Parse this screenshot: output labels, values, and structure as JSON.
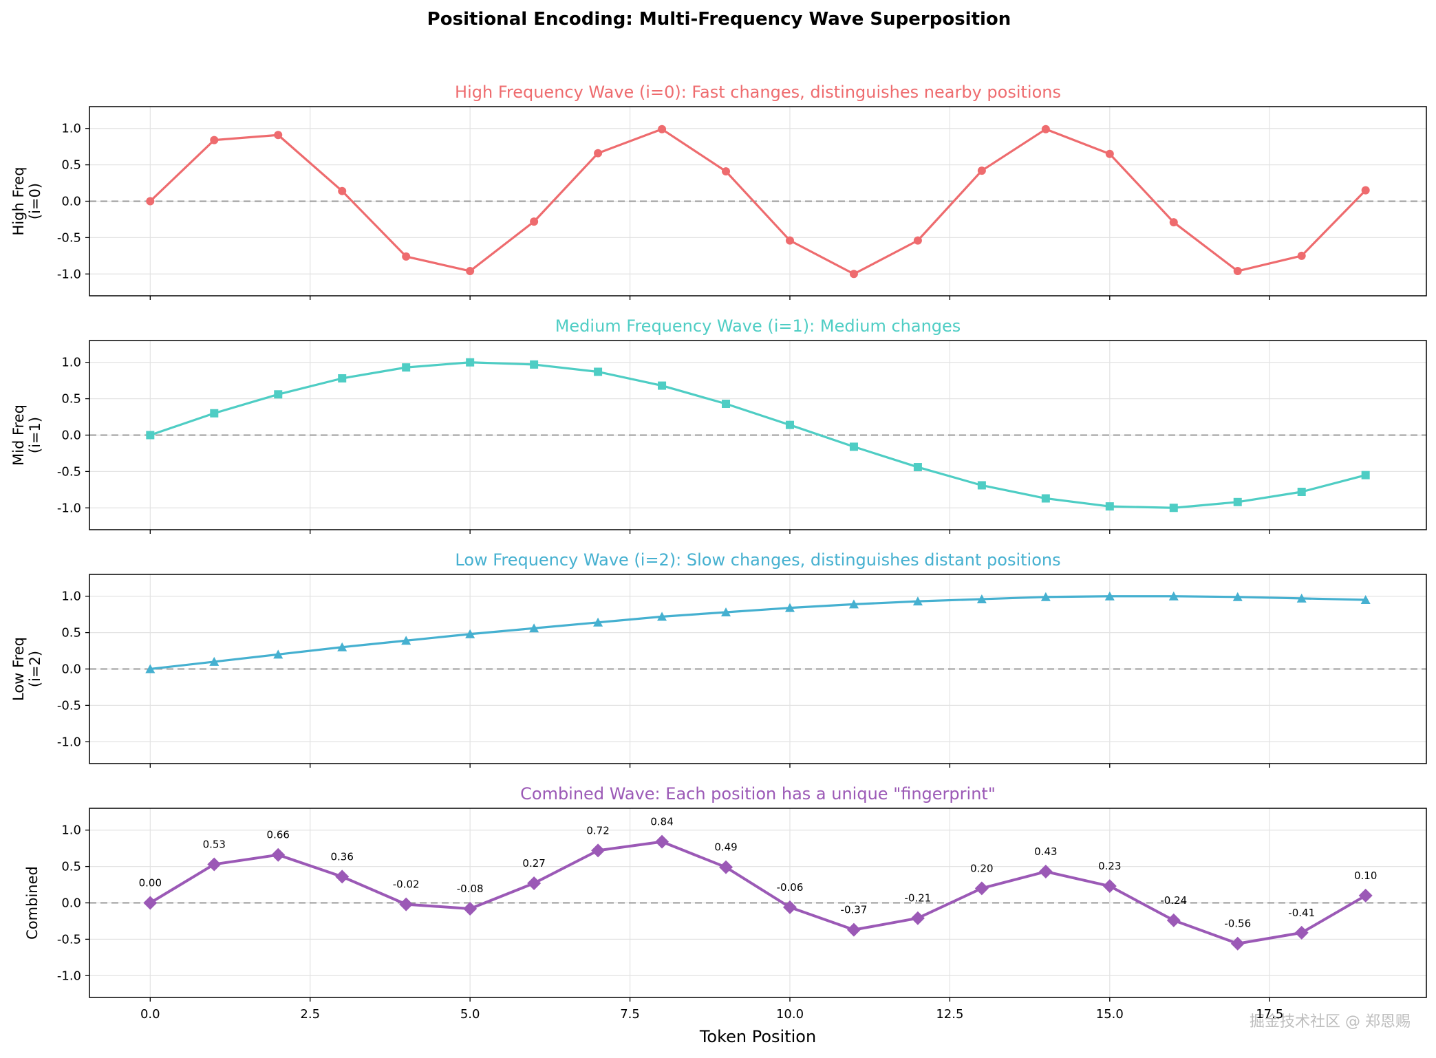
{
  "title": "Positional Encoding: Multi-Frequency Wave Superposition",
  "watermark": "掘金技术社区 @ 郑恩赐",
  "chart_data": {
    "type": "line",
    "x": [
      0,
      1,
      2,
      3,
      4,
      5,
      6,
      7,
      8,
      9,
      10,
      11,
      12,
      13,
      14,
      15,
      16,
      17,
      18,
      19
    ],
    "xlabel": "Token Position",
    "xticks": [
      "0.0",
      "2.5",
      "5.0",
      "7.5",
      "10.0",
      "12.5",
      "15.0",
      "17.5"
    ],
    "xlim": [
      -0.95,
      19.95
    ],
    "ylim": [
      -1.3,
      1.3
    ],
    "yticks": [
      "1.0",
      "0.5",
      "0.0",
      "-0.5",
      "-1.0"
    ],
    "grid": true,
    "reference_line": {
      "y": 0,
      "style": "dashed",
      "color": "#999999"
    },
    "panels": [
      {
        "title": "High Frequency Wave (i=0): Fast changes, distinguishes nearby positions",
        "ylabel": [
          "High Freq",
          "(i=0)"
        ],
        "color": "#ee6b6e",
        "marker": "circle",
        "values": [
          0.0,
          0.84,
          0.91,
          0.14,
          -0.76,
          -0.96,
          -0.28,
          0.66,
          0.99,
          0.41,
          -0.54,
          -1.0,
          -0.54,
          0.42,
          0.99,
          0.65,
          -0.29,
          -0.96,
          -0.75,
          0.15
        ]
      },
      {
        "title": "Medium Frequency Wave (i=1): Medium changes",
        "ylabel": [
          "Mid Freq",
          "(i=1)"
        ],
        "color": "#4ecdc4",
        "marker": "square",
        "values": [
          0.0,
          0.3,
          0.56,
          0.78,
          0.93,
          1.0,
          0.97,
          0.87,
          0.68,
          0.43,
          0.14,
          -0.16,
          -0.44,
          -0.69,
          -0.87,
          -0.98,
          -1.0,
          -0.92,
          -0.78,
          -0.55
        ]
      },
      {
        "title": "Low Frequency Wave (i=2): Slow changes, distinguishes distant positions",
        "ylabel": [
          "Low Freq",
          "(i=2)"
        ],
        "color": "#45b0d0",
        "marker": "triangle",
        "values": [
          0.0,
          0.1,
          0.2,
          0.3,
          0.39,
          0.48,
          0.56,
          0.64,
          0.72,
          0.78,
          0.84,
          0.89,
          0.93,
          0.96,
          0.99,
          1.0,
          1.0,
          0.99,
          0.97,
          0.95
        ]
      },
      {
        "title": "Combined Wave: Each position has a unique \"fingerprint\"",
        "ylabel": [
          "Combined"
        ],
        "color": "#9b59b6",
        "marker": "diamond",
        "values": [
          0.0,
          0.53,
          0.66,
          0.36,
          -0.02,
          -0.08,
          0.27,
          0.72,
          0.84,
          0.49,
          -0.06,
          -0.37,
          -0.21,
          0.2,
          0.43,
          0.23,
          -0.24,
          -0.56,
          -0.41,
          0.1
        ],
        "data_labels": [
          "0.00",
          "0.53",
          "0.66",
          "0.36",
          "-0.02",
          "-0.08",
          "0.27",
          "0.72",
          "0.84",
          "0.49",
          "-0.06",
          "-0.37",
          "-0.21",
          "0.20",
          "0.43",
          "0.23",
          "-0.24",
          "-0.56",
          "-0.41",
          "0.10"
        ]
      }
    ]
  }
}
